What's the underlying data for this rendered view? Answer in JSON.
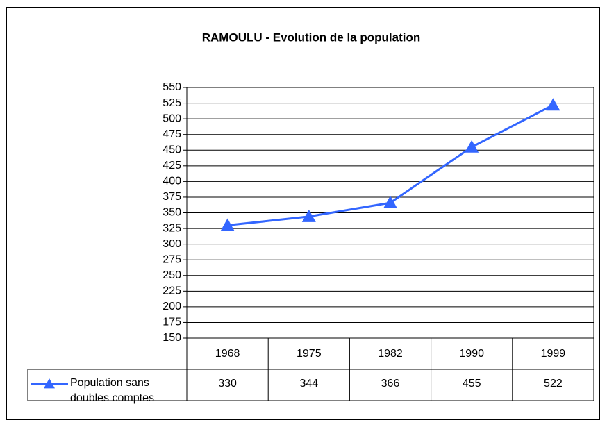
{
  "chart_data": {
    "type": "line",
    "title": "RAMOULU - Evolution de la population",
    "categories": [
      "1968",
      "1975",
      "1982",
      "1990",
      "1999"
    ],
    "series": [
      {
        "name": "Population sans doubles comptes",
        "color": "#3366ff",
        "values": [
          330,
          344,
          366,
          455,
          522
        ]
      }
    ],
    "ylim": [
      150,
      550
    ],
    "yticks": [
      150,
      175,
      200,
      225,
      250,
      275,
      300,
      325,
      350,
      375,
      400,
      425,
      450,
      475,
      500,
      525,
      550
    ],
    "grid": true,
    "data_table": true
  }
}
